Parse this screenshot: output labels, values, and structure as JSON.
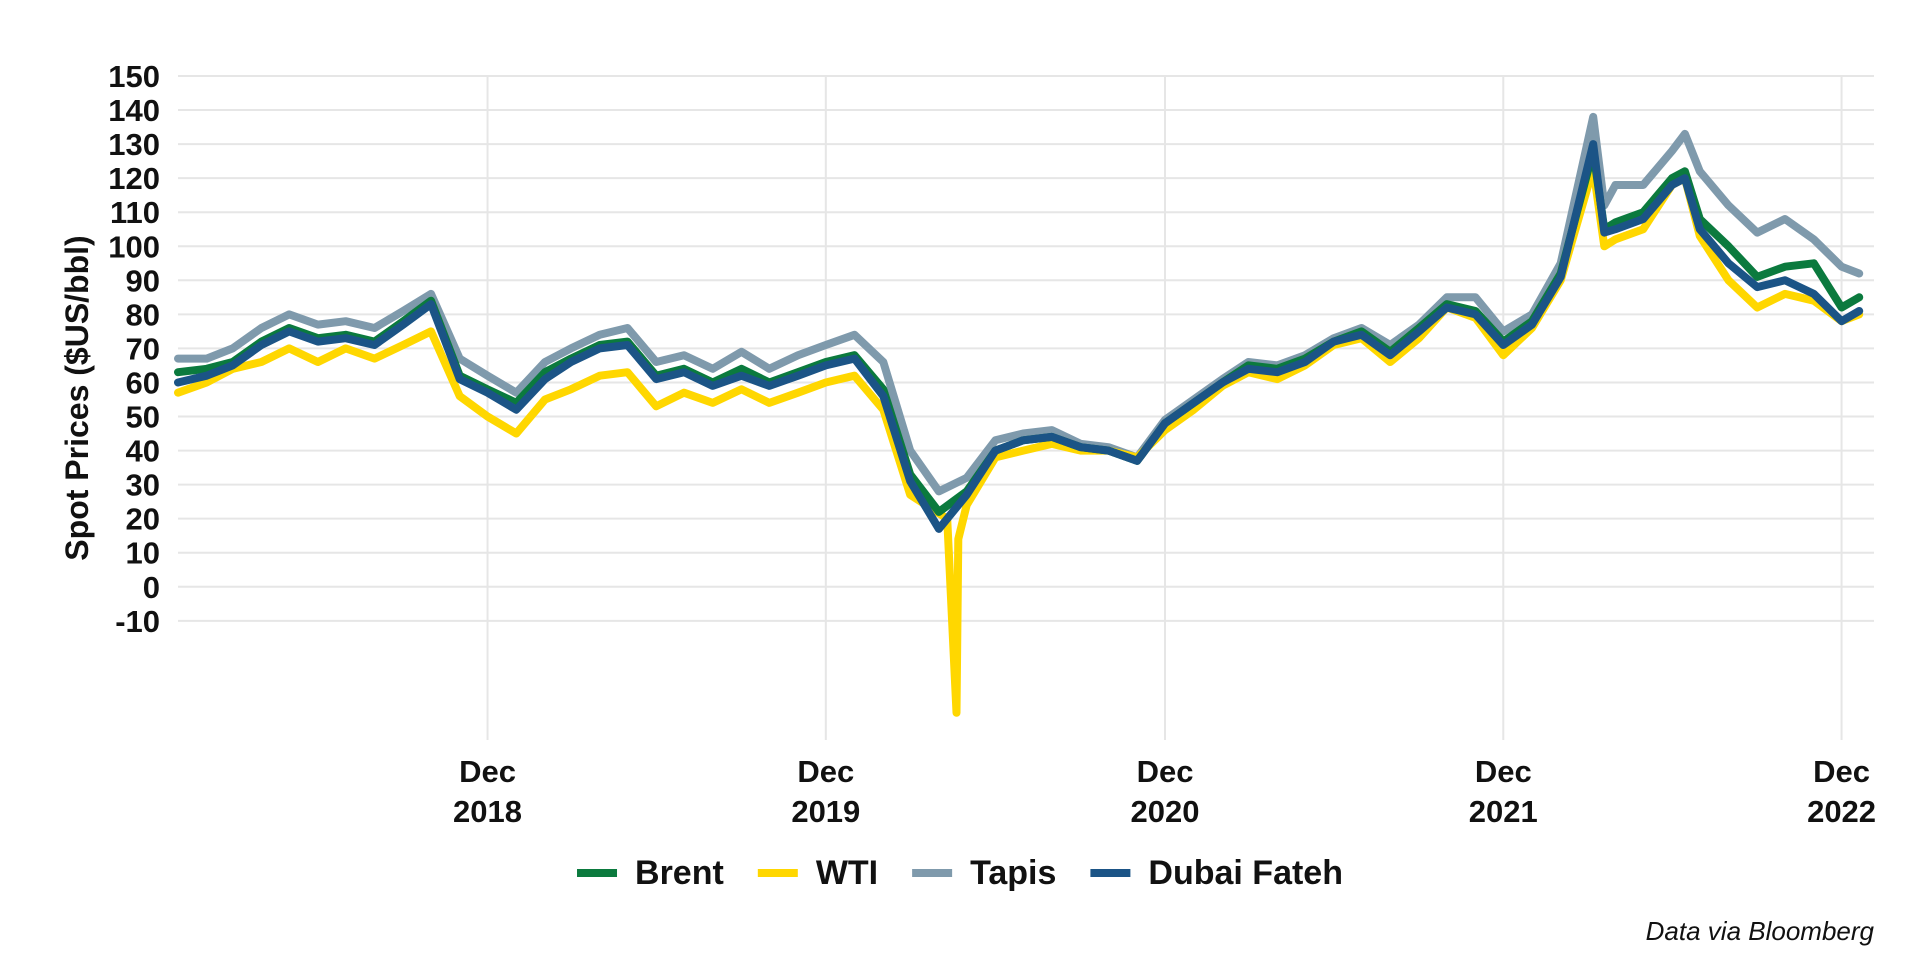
{
  "chart_data": {
    "type": "line",
    "ylabel": "Spot Prices ($US/bbl)",
    "xlabel": "",
    "caption": "Data via Bloomberg",
    "ylim": [
      -10,
      150
    ],
    "y_plot_min": -45,
    "yticks": [
      150,
      140,
      130,
      120,
      110,
      100,
      90,
      80,
      70,
      60,
      50,
      40,
      30,
      20,
      10,
      0,
      -10
    ],
    "xlim": [
      "2018-01-01",
      "2023-01-05"
    ],
    "xticks": [
      {
        "date": "2018-12-01",
        "line1": "Dec",
        "line2": "2018"
      },
      {
        "date": "2019-12-01",
        "line1": "Dec",
        "line2": "2019"
      },
      {
        "date": "2020-12-01",
        "line1": "Dec",
        "line2": "2020"
      },
      {
        "date": "2021-12-01",
        "line1": "Dec",
        "line2": "2021"
      },
      {
        "date": "2022-12-01",
        "line1": "Dec",
        "line2": "2022"
      }
    ],
    "grid": true,
    "legend_position": "bottom",
    "series": [
      {
        "name": "Tapis",
        "color": "#7f9aac",
        "points": [
          [
            "2018-01-01",
            67
          ],
          [
            "2018-02-01",
            67
          ],
          [
            "2018-03-01",
            70
          ],
          [
            "2018-04-01",
            76
          ],
          [
            "2018-05-01",
            80
          ],
          [
            "2018-06-01",
            77
          ],
          [
            "2018-07-01",
            78
          ],
          [
            "2018-08-01",
            76
          ],
          [
            "2018-09-01",
            81
          ],
          [
            "2018-10-01",
            86
          ],
          [
            "2018-11-01",
            67
          ],
          [
            "2018-12-01",
            62
          ],
          [
            "2019-01-01",
            57
          ],
          [
            "2019-02-01",
            66
          ],
          [
            "2019-03-01",
            70
          ],
          [
            "2019-04-01",
            74
          ],
          [
            "2019-05-01",
            76
          ],
          [
            "2019-06-01",
            66
          ],
          [
            "2019-07-01",
            68
          ],
          [
            "2019-08-01",
            64
          ],
          [
            "2019-09-01",
            69
          ],
          [
            "2019-10-01",
            64
          ],
          [
            "2019-11-01",
            68
          ],
          [
            "2019-12-01",
            71
          ],
          [
            "2020-01-01",
            74
          ],
          [
            "2020-02-01",
            66
          ],
          [
            "2020-03-01",
            40
          ],
          [
            "2020-04-01",
            28
          ],
          [
            "2020-05-01",
            32
          ],
          [
            "2020-06-01",
            43
          ],
          [
            "2020-07-01",
            45
          ],
          [
            "2020-08-01",
            46
          ],
          [
            "2020-09-01",
            42
          ],
          [
            "2020-10-01",
            41
          ],
          [
            "2020-11-01",
            38
          ],
          [
            "2020-12-01",
            49
          ],
          [
            "2021-01-01",
            55
          ],
          [
            "2021-02-01",
            61
          ],
          [
            "2021-03-01",
            66
          ],
          [
            "2021-04-01",
            65
          ],
          [
            "2021-05-01",
            68
          ],
          [
            "2021-06-01",
            73
          ],
          [
            "2021-07-01",
            76
          ],
          [
            "2021-08-01",
            71
          ],
          [
            "2021-09-01",
            77
          ],
          [
            "2021-10-01",
            85
          ],
          [
            "2021-11-01",
            85
          ],
          [
            "2021-12-01",
            75
          ],
          [
            "2022-01-01",
            80
          ],
          [
            "2022-02-01",
            95
          ],
          [
            "2022-03-08",
            138
          ],
          [
            "2022-03-20",
            112
          ],
          [
            "2022-04-01",
            118
          ],
          [
            "2022-05-01",
            118
          ],
          [
            "2022-06-01",
            128
          ],
          [
            "2022-06-15",
            133
          ],
          [
            "2022-07-01",
            122
          ],
          [
            "2022-08-01",
            112
          ],
          [
            "2022-09-01",
            104
          ],
          [
            "2022-10-01",
            108
          ],
          [
            "2022-11-01",
            102
          ],
          [
            "2022-12-01",
            94
          ],
          [
            "2022-12-20",
            92
          ]
        ]
      },
      {
        "name": "WTI",
        "color": "#ffd700",
        "points": [
          [
            "2018-01-01",
            57
          ],
          [
            "2018-02-01",
            60
          ],
          [
            "2018-03-01",
            64
          ],
          [
            "2018-04-01",
            66
          ],
          [
            "2018-05-01",
            70
          ],
          [
            "2018-06-01",
            66
          ],
          [
            "2018-07-01",
            70
          ],
          [
            "2018-08-01",
            67
          ],
          [
            "2018-09-01",
            71
          ],
          [
            "2018-10-01",
            75
          ],
          [
            "2018-11-01",
            56
          ],
          [
            "2018-12-01",
            50
          ],
          [
            "2019-01-01",
            45
          ],
          [
            "2019-02-01",
            55
          ],
          [
            "2019-03-01",
            58
          ],
          [
            "2019-04-01",
            62
          ],
          [
            "2019-05-01",
            63
          ],
          [
            "2019-06-01",
            53
          ],
          [
            "2019-07-01",
            57
          ],
          [
            "2019-08-01",
            54
          ],
          [
            "2019-09-01",
            58
          ],
          [
            "2019-10-01",
            54
          ],
          [
            "2019-11-01",
            57
          ],
          [
            "2019-12-01",
            60
          ],
          [
            "2020-01-01",
            62
          ],
          [
            "2020-02-01",
            52
          ],
          [
            "2020-03-01",
            27
          ],
          [
            "2020-04-10",
            20
          ],
          [
            "2020-04-20",
            -37
          ],
          [
            "2020-04-22",
            14
          ],
          [
            "2020-05-01",
            24
          ],
          [
            "2020-06-01",
            38
          ],
          [
            "2020-07-01",
            40
          ],
          [
            "2020-08-01",
            42
          ],
          [
            "2020-09-01",
            40
          ],
          [
            "2020-10-01",
            40
          ],
          [
            "2020-11-01",
            38
          ],
          [
            "2020-12-01",
            46
          ],
          [
            "2021-01-01",
            52
          ],
          [
            "2021-02-01",
            59
          ],
          [
            "2021-03-01",
            63
          ],
          [
            "2021-04-01",
            61
          ],
          [
            "2021-05-01",
            65
          ],
          [
            "2021-06-01",
            71
          ],
          [
            "2021-07-01",
            73
          ],
          [
            "2021-08-01",
            66
          ],
          [
            "2021-09-01",
            73
          ],
          [
            "2021-10-01",
            82
          ],
          [
            "2021-11-01",
            79
          ],
          [
            "2021-12-01",
            68
          ],
          [
            "2022-01-01",
            76
          ],
          [
            "2022-02-01",
            90
          ],
          [
            "2022-03-08",
            123
          ],
          [
            "2022-03-20",
            100
          ],
          [
            "2022-04-01",
            102
          ],
          [
            "2022-05-01",
            105
          ],
          [
            "2022-06-01",
            118
          ],
          [
            "2022-06-15",
            120
          ],
          [
            "2022-07-01",
            103
          ],
          [
            "2022-08-01",
            90
          ],
          [
            "2022-09-01",
            82
          ],
          [
            "2022-10-01",
            86
          ],
          [
            "2022-11-01",
            84
          ],
          [
            "2022-12-01",
            78
          ],
          [
            "2022-12-20",
            80
          ]
        ]
      },
      {
        "name": "Brent",
        "color": "#0b7a3e",
        "points": [
          [
            "2018-01-01",
            63
          ],
          [
            "2018-02-01",
            64
          ],
          [
            "2018-03-01",
            66
          ],
          [
            "2018-04-01",
            72
          ],
          [
            "2018-05-01",
            76
          ],
          [
            "2018-06-01",
            73
          ],
          [
            "2018-07-01",
            74
          ],
          [
            "2018-08-01",
            72
          ],
          [
            "2018-09-01",
            78
          ],
          [
            "2018-10-01",
            84
          ],
          [
            "2018-11-01",
            62
          ],
          [
            "2018-12-01",
            58
          ],
          [
            "2019-01-01",
            54
          ],
          [
            "2019-02-01",
            63
          ],
          [
            "2019-03-01",
            67
          ],
          [
            "2019-04-01",
            71
          ],
          [
            "2019-05-01",
            72
          ],
          [
            "2019-06-01",
            62
          ],
          [
            "2019-07-01",
            64
          ],
          [
            "2019-08-01",
            60
          ],
          [
            "2019-09-01",
            64
          ],
          [
            "2019-10-01",
            60
          ],
          [
            "2019-11-01",
            63
          ],
          [
            "2019-12-01",
            66
          ],
          [
            "2020-01-01",
            68
          ],
          [
            "2020-02-01",
            58
          ],
          [
            "2020-03-01",
            33
          ],
          [
            "2020-04-01",
            22
          ],
          [
            "2020-05-01",
            28
          ],
          [
            "2020-06-01",
            40
          ],
          [
            "2020-07-01",
            43
          ],
          [
            "2020-08-01",
            44
          ],
          [
            "2020-09-01",
            41
          ],
          [
            "2020-10-01",
            40
          ],
          [
            "2020-11-01",
            37
          ],
          [
            "2020-12-01",
            48
          ],
          [
            "2021-01-01",
            54
          ],
          [
            "2021-02-01",
            60
          ],
          [
            "2021-03-01",
            65
          ],
          [
            "2021-04-01",
            64
          ],
          [
            "2021-05-01",
            67
          ],
          [
            "2021-06-01",
            72
          ],
          [
            "2021-07-01",
            75
          ],
          [
            "2021-08-01",
            69
          ],
          [
            "2021-09-01",
            76
          ],
          [
            "2021-10-01",
            83
          ],
          [
            "2021-11-01",
            81
          ],
          [
            "2021-12-01",
            72
          ],
          [
            "2022-01-01",
            78
          ],
          [
            "2022-02-01",
            92
          ],
          [
            "2022-03-08",
            128
          ],
          [
            "2022-03-20",
            105
          ],
          [
            "2022-04-01",
            107
          ],
          [
            "2022-05-01",
            110
          ],
          [
            "2022-06-01",
            120
          ],
          [
            "2022-06-15",
            122
          ],
          [
            "2022-07-01",
            108
          ],
          [
            "2022-08-01",
            100
          ],
          [
            "2022-09-01",
            91
          ],
          [
            "2022-10-01",
            94
          ],
          [
            "2022-11-01",
            95
          ],
          [
            "2022-12-01",
            82
          ],
          [
            "2022-12-20",
            85
          ]
        ]
      },
      {
        "name": "Dubai Fateh",
        "color": "#1b5486",
        "points": [
          [
            "2018-01-01",
            60
          ],
          [
            "2018-02-01",
            62
          ],
          [
            "2018-03-01",
            65
          ],
          [
            "2018-04-01",
            71
          ],
          [
            "2018-05-01",
            75
          ],
          [
            "2018-06-01",
            72
          ],
          [
            "2018-07-01",
            73
          ],
          [
            "2018-08-01",
            71
          ],
          [
            "2018-09-01",
            77
          ],
          [
            "2018-10-01",
            83
          ],
          [
            "2018-11-01",
            61
          ],
          [
            "2018-12-01",
            57
          ],
          [
            "2019-01-01",
            52
          ],
          [
            "2019-02-01",
            61
          ],
          [
            "2019-03-01",
            66
          ],
          [
            "2019-04-01",
            70
          ],
          [
            "2019-05-01",
            71
          ],
          [
            "2019-06-01",
            61
          ],
          [
            "2019-07-01",
            63
          ],
          [
            "2019-08-01",
            59
          ],
          [
            "2019-09-01",
            62
          ],
          [
            "2019-10-01",
            59
          ],
          [
            "2019-11-01",
            62
          ],
          [
            "2019-12-01",
            65
          ],
          [
            "2020-01-01",
            67
          ],
          [
            "2020-02-01",
            56
          ],
          [
            "2020-03-01",
            31
          ],
          [
            "2020-04-01",
            17
          ],
          [
            "2020-05-01",
            27
          ],
          [
            "2020-06-01",
            40
          ],
          [
            "2020-07-01",
            43
          ],
          [
            "2020-08-01",
            44
          ],
          [
            "2020-09-01",
            41
          ],
          [
            "2020-10-01",
            40
          ],
          [
            "2020-11-01",
            37
          ],
          [
            "2020-12-01",
            48
          ],
          [
            "2021-01-01",
            54
          ],
          [
            "2021-02-01",
            60
          ],
          [
            "2021-03-01",
            64
          ],
          [
            "2021-04-01",
            63
          ],
          [
            "2021-05-01",
            66
          ],
          [
            "2021-06-01",
            72
          ],
          [
            "2021-07-01",
            74
          ],
          [
            "2021-08-01",
            68
          ],
          [
            "2021-09-01",
            75
          ],
          [
            "2021-10-01",
            82
          ],
          [
            "2021-11-01",
            80
          ],
          [
            "2021-12-01",
            71
          ],
          [
            "2022-01-01",
            77
          ],
          [
            "2022-02-01",
            91
          ],
          [
            "2022-03-08",
            130
          ],
          [
            "2022-03-20",
            104
          ],
          [
            "2022-04-01",
            105
          ],
          [
            "2022-05-01",
            108
          ],
          [
            "2022-06-01",
            118
          ],
          [
            "2022-06-15",
            120
          ],
          [
            "2022-07-01",
            105
          ],
          [
            "2022-08-01",
            95
          ],
          [
            "2022-09-01",
            88
          ],
          [
            "2022-10-01",
            90
          ],
          [
            "2022-11-01",
            86
          ],
          [
            "2022-12-01",
            78
          ],
          [
            "2022-12-20",
            81
          ]
        ]
      }
    ]
  },
  "legend": {
    "items": [
      {
        "label": "Brent",
        "color": "#0b7a3e"
      },
      {
        "label": "WTI",
        "color": "#ffd700"
      },
      {
        "label": "Tapis",
        "color": "#7f9aac"
      },
      {
        "label": "Dubai Fateh",
        "color": "#1b5486"
      }
    ]
  }
}
